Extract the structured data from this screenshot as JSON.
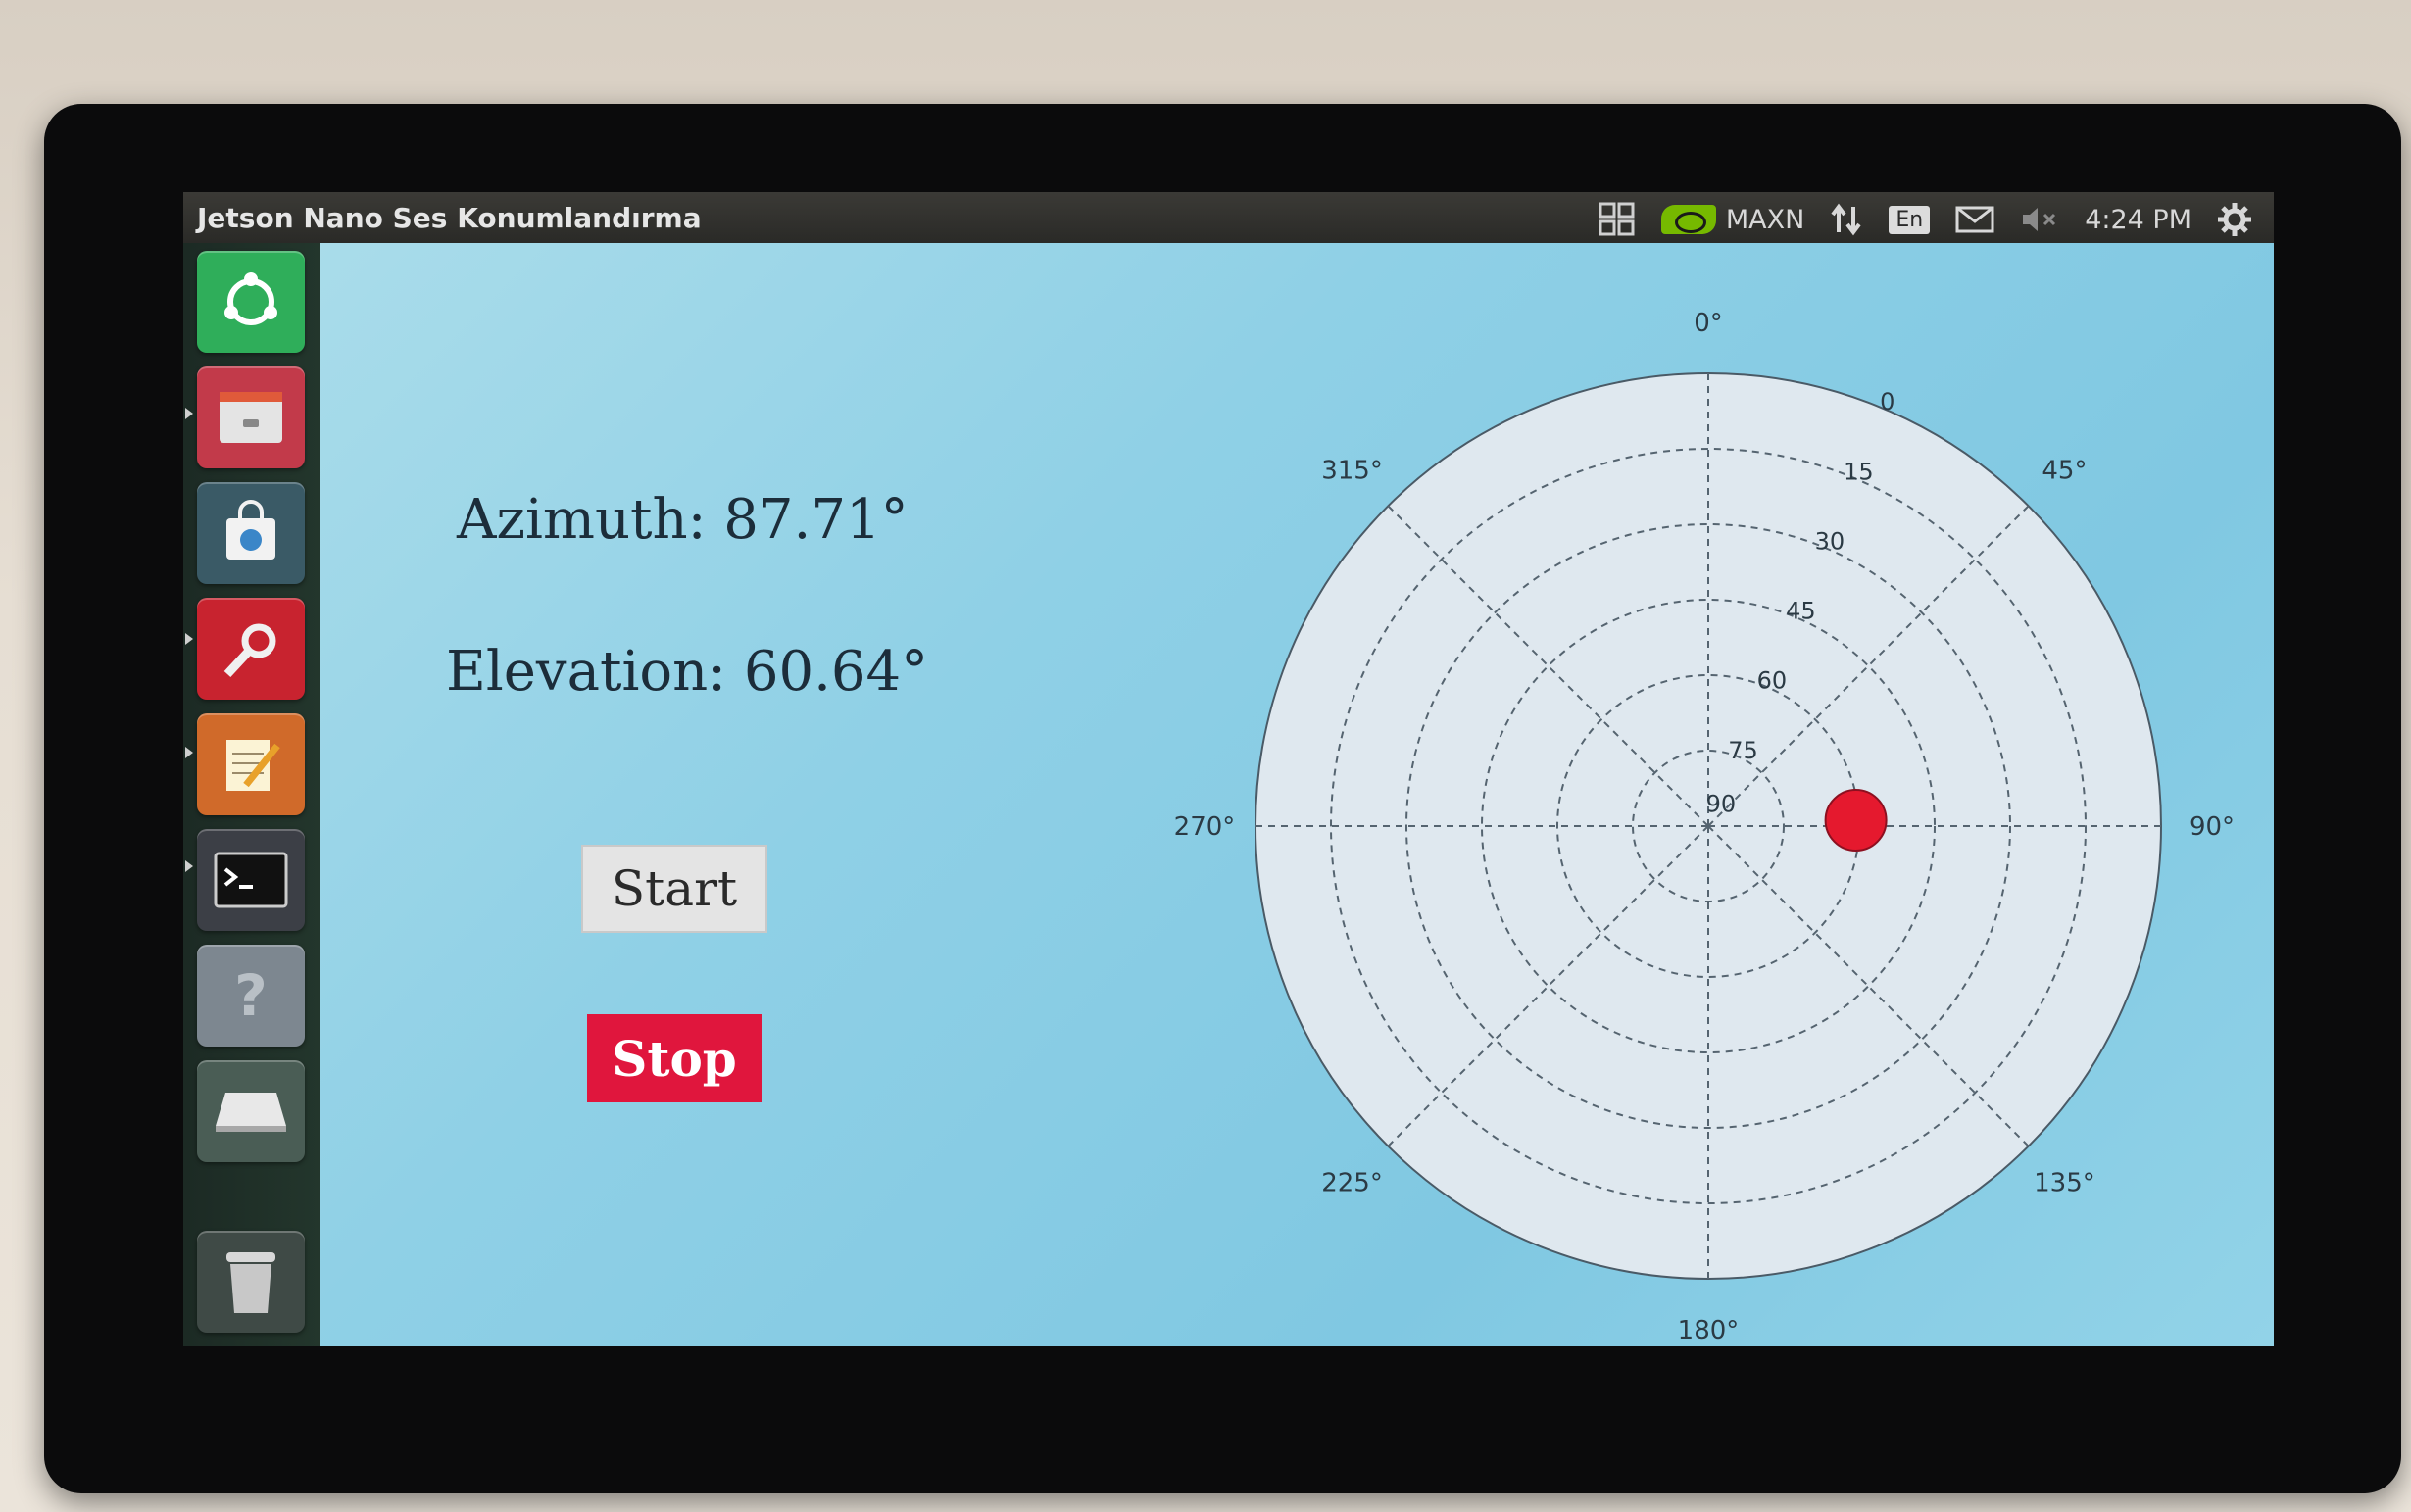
{
  "window": {
    "title": "Jetson Nano Ses Konumlandırma"
  },
  "topbar": {
    "power_mode": "MAXN",
    "keyboard_layout": "En",
    "clock": "4:24 PM",
    "icons": [
      "workspaces-icon",
      "nvidia-icon",
      "network-icon",
      "mail-icon",
      "volume-muted-icon",
      "settings-gear-icon"
    ]
  },
  "launcher": {
    "items": [
      {
        "name": "ubuntu-dash",
        "icon": "ubuntu-logo-icon",
        "color": "#2fae5a"
      },
      {
        "name": "files",
        "icon": "file-cabinet-icon",
        "color": "#c23a4a"
      },
      {
        "name": "software-center",
        "icon": "shopping-bag-icon",
        "color": "#3a5a66"
      },
      {
        "name": "system-settings",
        "icon": "wrench-gear-icon",
        "color": "#c8232f"
      },
      {
        "name": "text-editor",
        "icon": "notepad-pencil-icon",
        "color": "#d06a2a"
      },
      {
        "name": "terminal",
        "icon": "terminal-icon",
        "color": "#3c3f46"
      },
      {
        "name": "help",
        "icon": "question-mark-icon",
        "color": "#7d8790"
      },
      {
        "name": "drive",
        "icon": "drive-icon",
        "color": "#4a5d55"
      },
      {
        "name": "trash",
        "icon": "trash-icon",
        "color": "#3f4a46"
      }
    ]
  },
  "main": {
    "azimuth_text": "Azimuth: 87.71°",
    "elevation_text": "Elevation: 60.64°",
    "start_label": "Start",
    "stop_label": "Stop",
    "stop_color": "#e0163d"
  },
  "chart_data": {
    "type": "scatter",
    "projection": "polar",
    "theta_direction": "clockwise",
    "theta_zero": "top",
    "theta_tick_labels": [
      "0°",
      "45°",
      "90°",
      "135°",
      "180°",
      "225°",
      "270°",
      "315°"
    ],
    "r_tick_labels": [
      "0",
      "15",
      "30",
      "45",
      "60",
      "75",
      "90"
    ],
    "r_values": [
      0,
      15,
      30,
      45,
      60,
      75,
      90
    ],
    "r_axis": "elevation, 90 at center, 0 at rim",
    "grid": true,
    "grid_style": "dashed",
    "marker_color": "#e5192e",
    "points": [
      {
        "azimuth": 87.71,
        "elevation": 60.64
      }
    ]
  }
}
